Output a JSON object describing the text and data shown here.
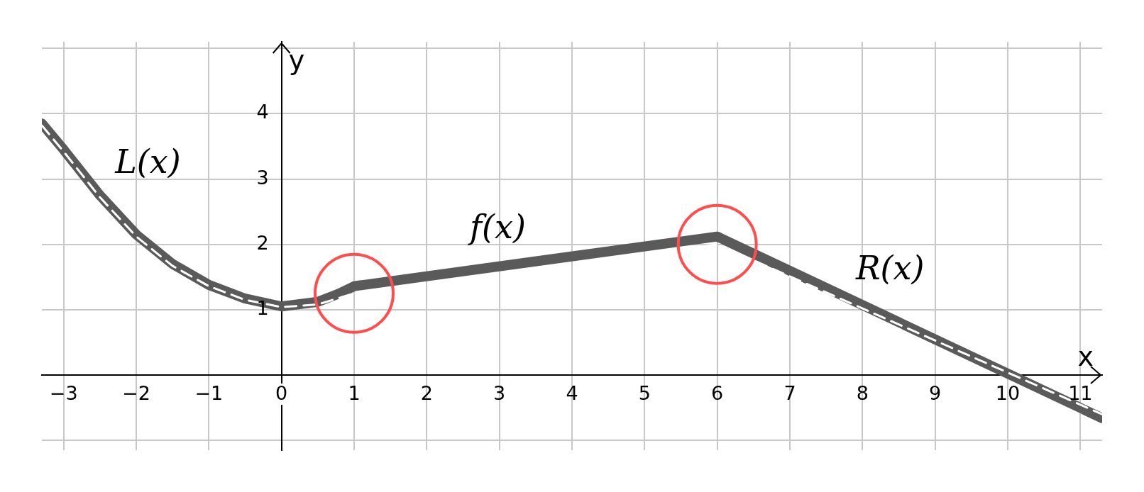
{
  "chart_data": {
    "type": "line",
    "xlabel": "x",
    "ylabel": "y",
    "xlim": [
      -3.3,
      11.3
    ],
    "ylim": [
      -1.15,
      5.1
    ],
    "xticks": [
      {
        "value": -3,
        "label": "−3"
      },
      {
        "value": -2,
        "label": "−2"
      },
      {
        "value": -1,
        "label": "−1"
      },
      0,
      1,
      2,
      3,
      4,
      5,
      6,
      7,
      8,
      9,
      10,
      11
    ],
    "yticks": [
      {
        "value": -1,
        "label": null
      },
      {
        "value": 0,
        "label": null
      },
      1,
      2,
      3,
      4,
      {
        "value": 5,
        "label": null
      }
    ],
    "grid": true,
    "legend": false,
    "series": [
      {
        "color": "#5a5a5a",
        "line_style": "solid",
        "x": [
          -3.3,
          -3,
          -2.5,
          -2,
          -1.5,
          -1,
          -0.5,
          0,
          0.5,
          0.8,
          1,
          6,
          11.3
        ],
        "values": [
          3.85,
          3.45,
          2.75,
          2.15,
          1.7,
          1.38,
          1.17,
          1.05,
          1.12,
          1.25,
          1.36,
          2.12,
          -0.66
        ]
      },
      {
        "color": "#ffffff",
        "line_style": "dashed",
        "x": [
          -3.3,
          -3,
          -2.5,
          -2,
          -1.5,
          -1,
          -0.5,
          0,
          0.5,
          1,
          6,
          11.3
        ],
        "values": [
          3.82,
          3.42,
          2.72,
          2.12,
          1.67,
          1.36,
          1.15,
          1.04,
          1.08,
          1.25,
          2.0,
          -0.6
        ]
      },
      {
        "type": "scatter",
        "color": "#ff4d4d",
        "marker": "circle",
        "x": [
          1,
          6
        ],
        "values": [
          1.25,
          2.0
        ]
      }
    ],
    "annotations": [
      "L(x)",
      "f(x)",
      "R(x)"
    ]
  }
}
